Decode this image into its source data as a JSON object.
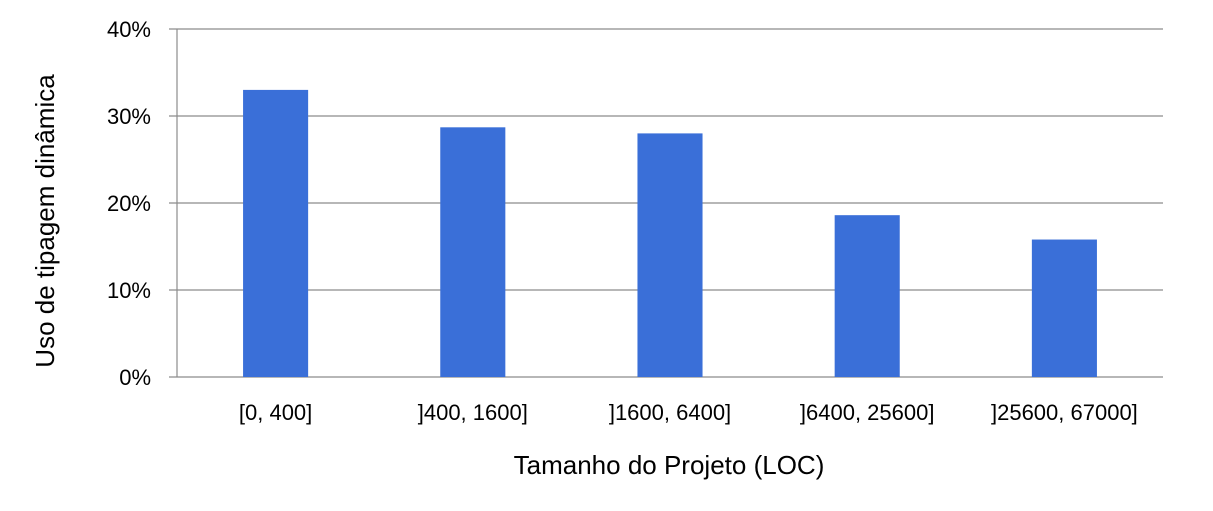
{
  "chart_data": {
    "type": "bar",
    "title": "",
    "xlabel": "Tamanho do Projeto (LOC)",
    "ylabel": "Uso de tipagem dinâmica",
    "categories": [
      "[0, 400]",
      "]400, 1600]",
      "]1600, 6400]",
      "]6400, 25600]",
      "]25600, 67000]"
    ],
    "values": [
      33,
      28.7,
      28,
      18.6,
      15.8
    ],
    "value_unit": "%",
    "ylim": [
      0,
      40
    ],
    "yticks": [
      0,
      10,
      20,
      30,
      40
    ],
    "ytick_labels": [
      "0%",
      "10%",
      "20%",
      "30%",
      "40%"
    ],
    "grid": true,
    "legend": "none",
    "bar_color": "#3a6fd8",
    "grid_color": "#8c8c8c"
  }
}
